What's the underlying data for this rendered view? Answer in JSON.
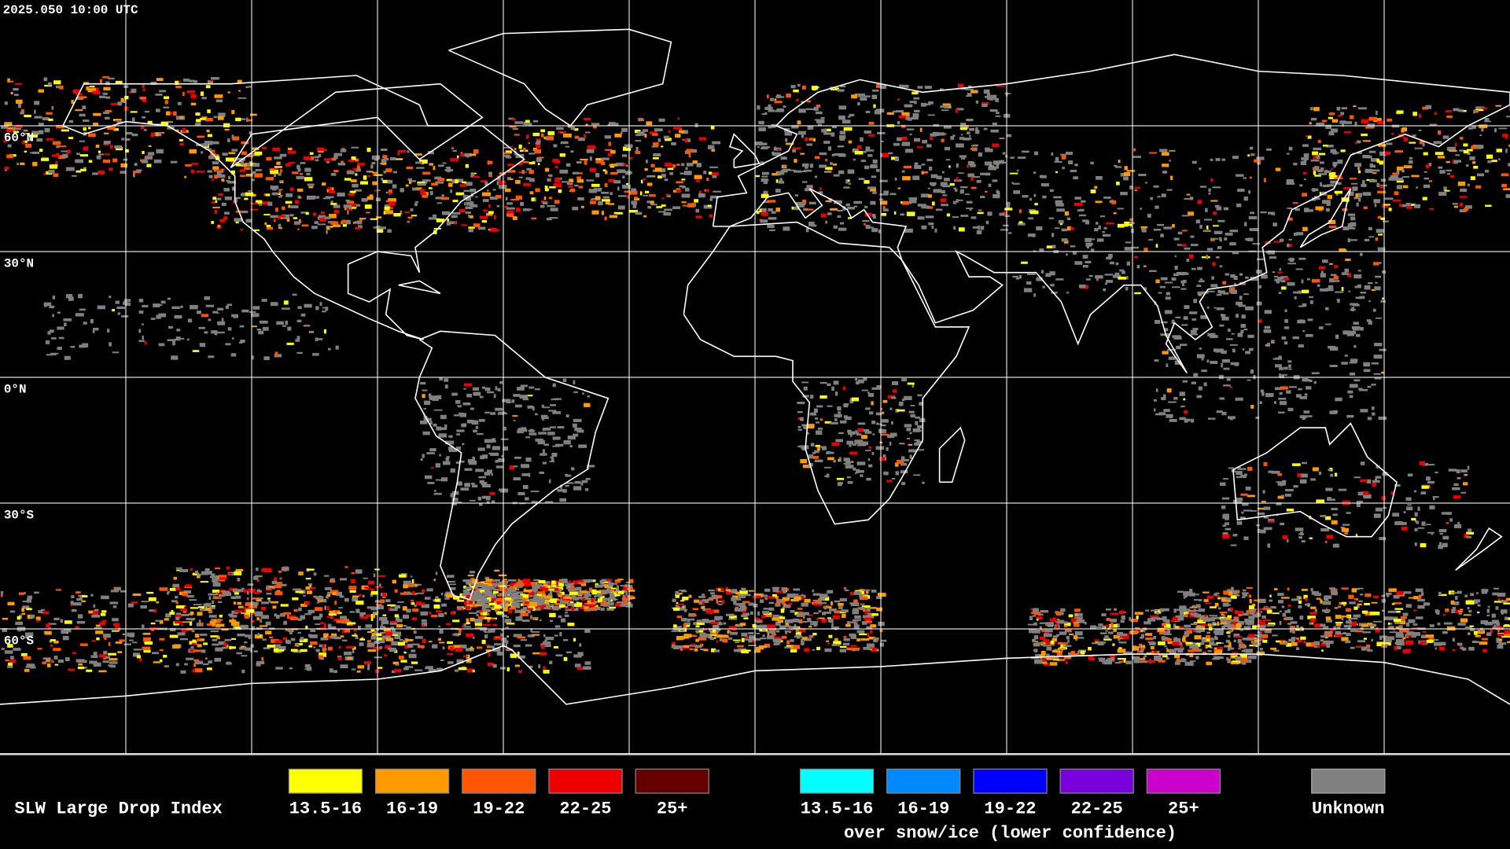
{
  "timestamp": "2025.050 10:00 UTC",
  "latitude_labels": [
    "60°N",
    "30°N",
    "0°N",
    "30°S",
    "60°S"
  ],
  "legend": {
    "title": "SLW Large Drop Index",
    "groups": [
      {
        "items": [
          {
            "label": "13.5-16",
            "color": "#ffff00"
          },
          {
            "label": "16-19",
            "color": "#ff9900"
          },
          {
            "label": "19-22",
            "color": "#ff5500"
          },
          {
            "label": "22-25",
            "color": "#ee0000"
          },
          {
            "label": "25+",
            "color": "#660000"
          }
        ]
      },
      {
        "items": [
          {
            "label": "13.5-16",
            "color": "#00ffff"
          },
          {
            "label": "16-19",
            "color": "#0088ff"
          },
          {
            "label": "19-22",
            "color": "#0000ff"
          },
          {
            "label": "22-25",
            "color": "#7700dd"
          },
          {
            "label": "25+",
            "color": "#cc00cc"
          }
        ],
        "caption": "over snow/ice (lower confidence)"
      }
    ],
    "unknown": {
      "label": "Unknown",
      "color": "#808080"
    }
  }
}
